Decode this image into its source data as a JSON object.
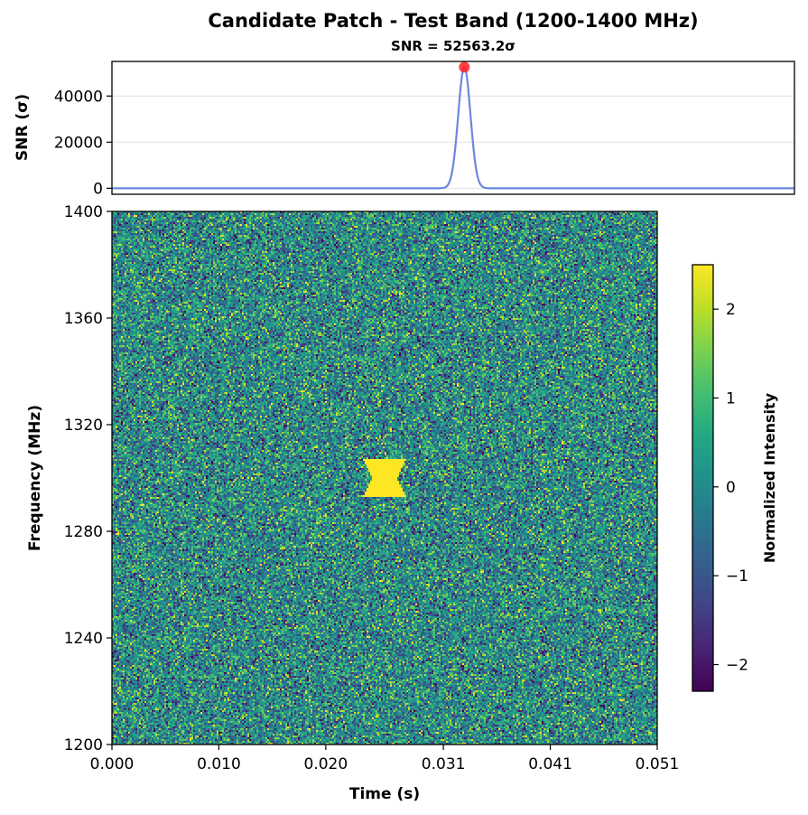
{
  "chart_data": [
    {
      "type": "line",
      "title": "Candidate Patch - Test Band (1200-1400 MHz)",
      "subtitle": "SNR = 52563.2σ",
      "ylabel": "SNR (σ)",
      "xlabel": "",
      "xlim": [
        0.0,
        0.0612
      ],
      "ylim": [
        -2600,
        55000
      ],
      "yticks": [
        0,
        20000,
        40000
      ],
      "ytick_labels": [
        "0",
        "20000",
        "40000"
      ],
      "grid": "y",
      "series": [
        {
          "color": "#6b88dd",
          "peak_time": 0.0316,
          "peak_value": 52563.2,
          "width_sigma": 0.00055,
          "x": [
            0.0,
            0.005,
            0.01,
            0.015,
            0.02,
            0.025,
            0.029,
            0.03,
            0.0305,
            0.031,
            0.0313,
            0.0316,
            0.0319,
            0.0322,
            0.0327,
            0.0332,
            0.034,
            0.04,
            0.05,
            0.0612
          ],
          "values": [
            0,
            0,
            0,
            0,
            0,
            0,
            0,
            500,
            4500,
            30000,
            45000,
            52563,
            45000,
            30000,
            4500,
            500,
            0,
            0,
            0,
            0
          ]
        }
      ],
      "marker": {
        "x": 0.0316,
        "y": 52563.2,
        "color": "#ff2020"
      }
    },
    {
      "type": "heatmap",
      "xlabel": "Time (s)",
      "ylabel": "Frequency (MHz)",
      "xlim": [
        0.0,
        0.051
      ],
      "ylim": [
        1200,
        1400
      ],
      "xticks": [
        0.0,
        0.01,
        0.02,
        0.031,
        0.041,
        0.051
      ],
      "xtick_labels": [
        "0.000",
        "0.010",
        "0.020",
        "0.031",
        "0.041",
        "0.051"
      ],
      "yticks": [
        1200,
        1240,
        1280,
        1320,
        1360,
        1400
      ],
      "ytick_labels": [
        "1200",
        "1240",
        "1280",
        "1320",
        "1360",
        "1400"
      ],
      "colormap": "viridis",
      "value_range": [
        -2.3,
        2.5
      ],
      "noise": "gaussian, mean 0, std 1",
      "signal": {
        "shape": "hourglass",
        "time_center": 0.0255,
        "time_width": 0.004,
        "freq_range": [
          1293,
          1307
        ],
        "value": 2.5
      },
      "colorbar": {
        "label": "Normalized Intensity",
        "ticks": [
          -2,
          -1,
          0,
          1,
          2
        ],
        "tick_labels": [
          "−2",
          "−1",
          "0",
          "1",
          "2"
        ]
      }
    }
  ]
}
